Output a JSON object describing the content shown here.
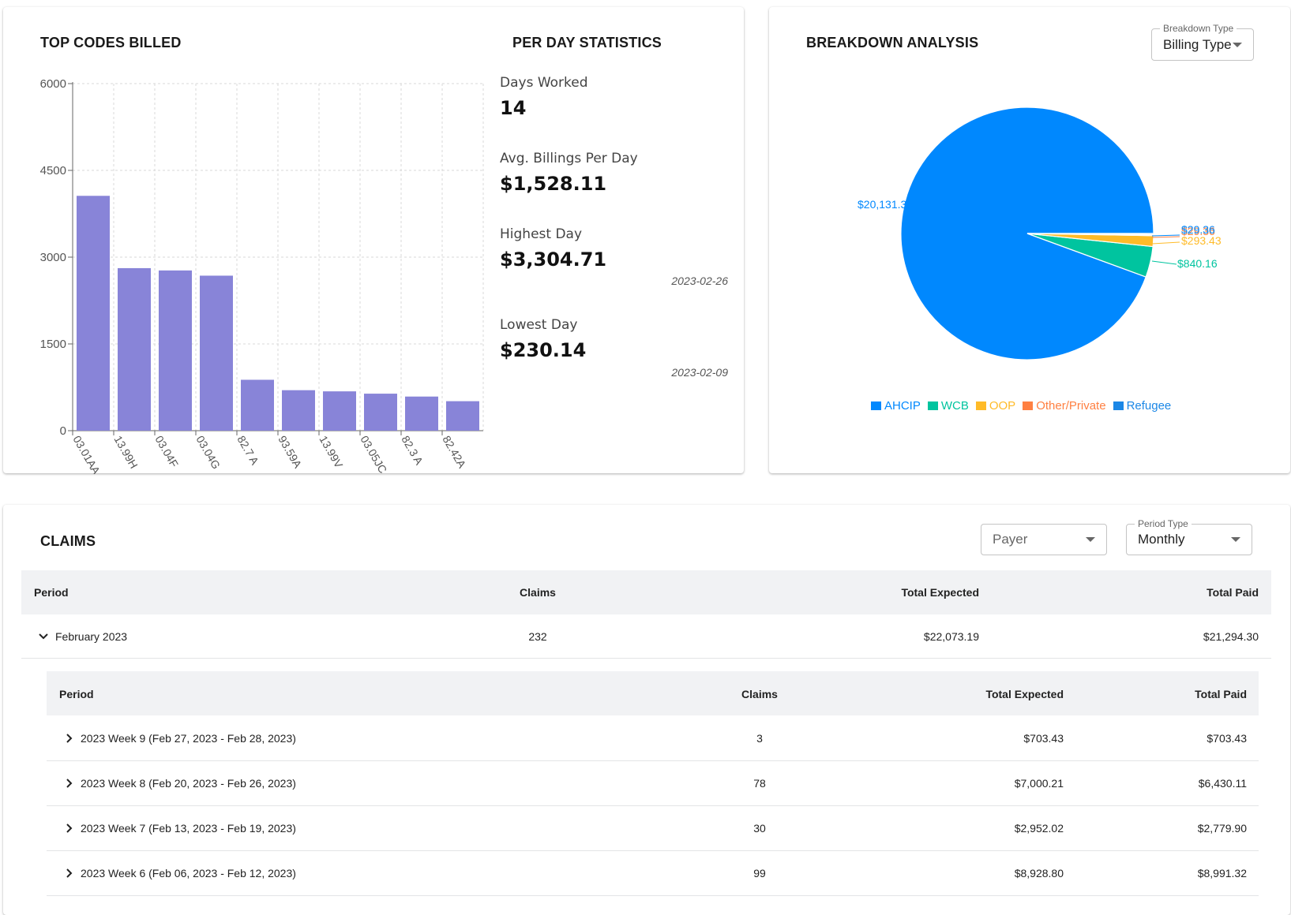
{
  "top_codes": {
    "title": "TOP CODES BILLED"
  },
  "per_day": {
    "title": "PER DAY STATISTICS",
    "days_worked_label": "Days Worked",
    "days_worked_value": "14",
    "avg_label": "Avg. Billings Per Day",
    "avg_value": "$1,528.11",
    "highest_label": "Highest Day",
    "highest_value": "$3,304.71",
    "highest_date": "2023-02-26",
    "lowest_label": "Lowest Day",
    "lowest_value": "$230.14",
    "lowest_date": "2023-02-09"
  },
  "breakdown": {
    "title": "BREAKDOWN ANALYSIS",
    "select_legend": "Breakdown Type",
    "select_value": "Billing Type"
  },
  "claims": {
    "title": "CLAIMS",
    "payer_placeholder": "Payer",
    "period_legend": "Period Type",
    "period_value": "Monthly",
    "headers": [
      "Period",
      "Claims",
      "Total Expected",
      "Total Paid"
    ],
    "month_row": {
      "period": "February 2023",
      "claims": "232",
      "expected": "$22,073.19",
      "paid": "$21,294.30"
    },
    "sub_headers": [
      "Period",
      "Claims",
      "Total Expected",
      "Total Paid"
    ],
    "weeks": [
      {
        "period": "2023 Week 9 (Feb 27, 2023 - Feb 28, 2023)",
        "claims": "3",
        "expected": "$703.43",
        "paid": "$703.43"
      },
      {
        "period": "2023 Week 8 (Feb 20, 2023 - Feb 26, 2023)",
        "claims": "78",
        "expected": "$7,000.21",
        "paid": "$6,430.11"
      },
      {
        "period": "2023 Week 7 (Feb 13, 2023 - Feb 19, 2023)",
        "claims": "30",
        "expected": "$2,952.02",
        "paid": "$2,779.90"
      },
      {
        "period": "2023 Week 6 (Feb 06, 2023 - Feb 12, 2023)",
        "claims": "99",
        "expected": "$8,928.80",
        "paid": "$8,991.32"
      }
    ]
  },
  "chart_data": [
    {
      "type": "bar",
      "categories": [
        "03.01AA",
        "13.99H",
        "03.04F",
        "03.04G",
        "82.7 A",
        "93.59A",
        "13.99V",
        "03.05JC",
        "82.3 A",
        "82.42A"
      ],
      "values": [
        4060,
        2810,
        2770,
        2680,
        880,
        700,
        680,
        640,
        590,
        510
      ],
      "yticks": [
        "0",
        "1500",
        "3000",
        "4500",
        "6000"
      ],
      "ylim": [
        0,
        6000
      ],
      "grid": true,
      "color": "#8884d8"
    },
    {
      "type": "pie",
      "labels": [
        "AHCIP",
        "WCB",
        "OOP",
        "Other/Private",
        "Refugee"
      ],
      "values": [
        20131.35,
        840.16,
        293.43,
        29.36,
        29.36
      ],
      "value_labels": [
        "$20,131.35",
        "$840.16",
        "$293.43",
        "$29.36",
        "$29.36"
      ],
      "colors": [
        "#0088fe",
        "#00c49f",
        "#ffbb28",
        "#ff8042",
        "#0088fe"
      ],
      "legend_colors": [
        "#0088fe",
        "#00c49f",
        "#ffbb28",
        "#ff8042",
        "#1b87e6"
      ],
      "legend_position": "bottom"
    }
  ]
}
